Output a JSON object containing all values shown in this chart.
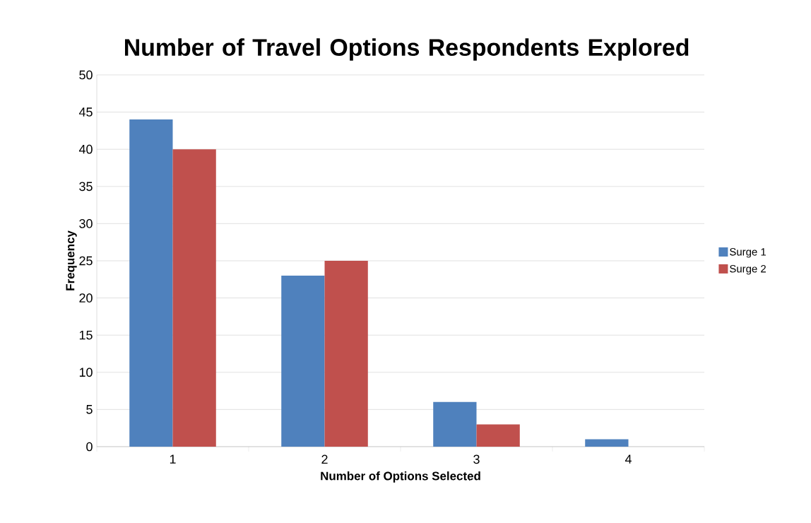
{
  "chart_data": {
    "type": "bar",
    "title": "Number of Travel Options Respondents Explored",
    "xlabel": "Number of Options Selected",
    "ylabel": "Frequency",
    "categories": [
      "1",
      "2",
      "3",
      "4"
    ],
    "series": [
      {
        "name": "Surge 1",
        "color": "#4f81bd",
        "values": [
          44,
          23,
          6,
          1
        ]
      },
      {
        "name": "Surge 2",
        "color": "#c0504d",
        "values": [
          40,
          25,
          3,
          0
        ]
      }
    ],
    "ylim": [
      0,
      50
    ],
    "yticks": [
      0,
      5,
      10,
      15,
      20,
      25,
      30,
      35,
      40,
      45,
      50
    ],
    "grid": "y",
    "legend": "right"
  }
}
